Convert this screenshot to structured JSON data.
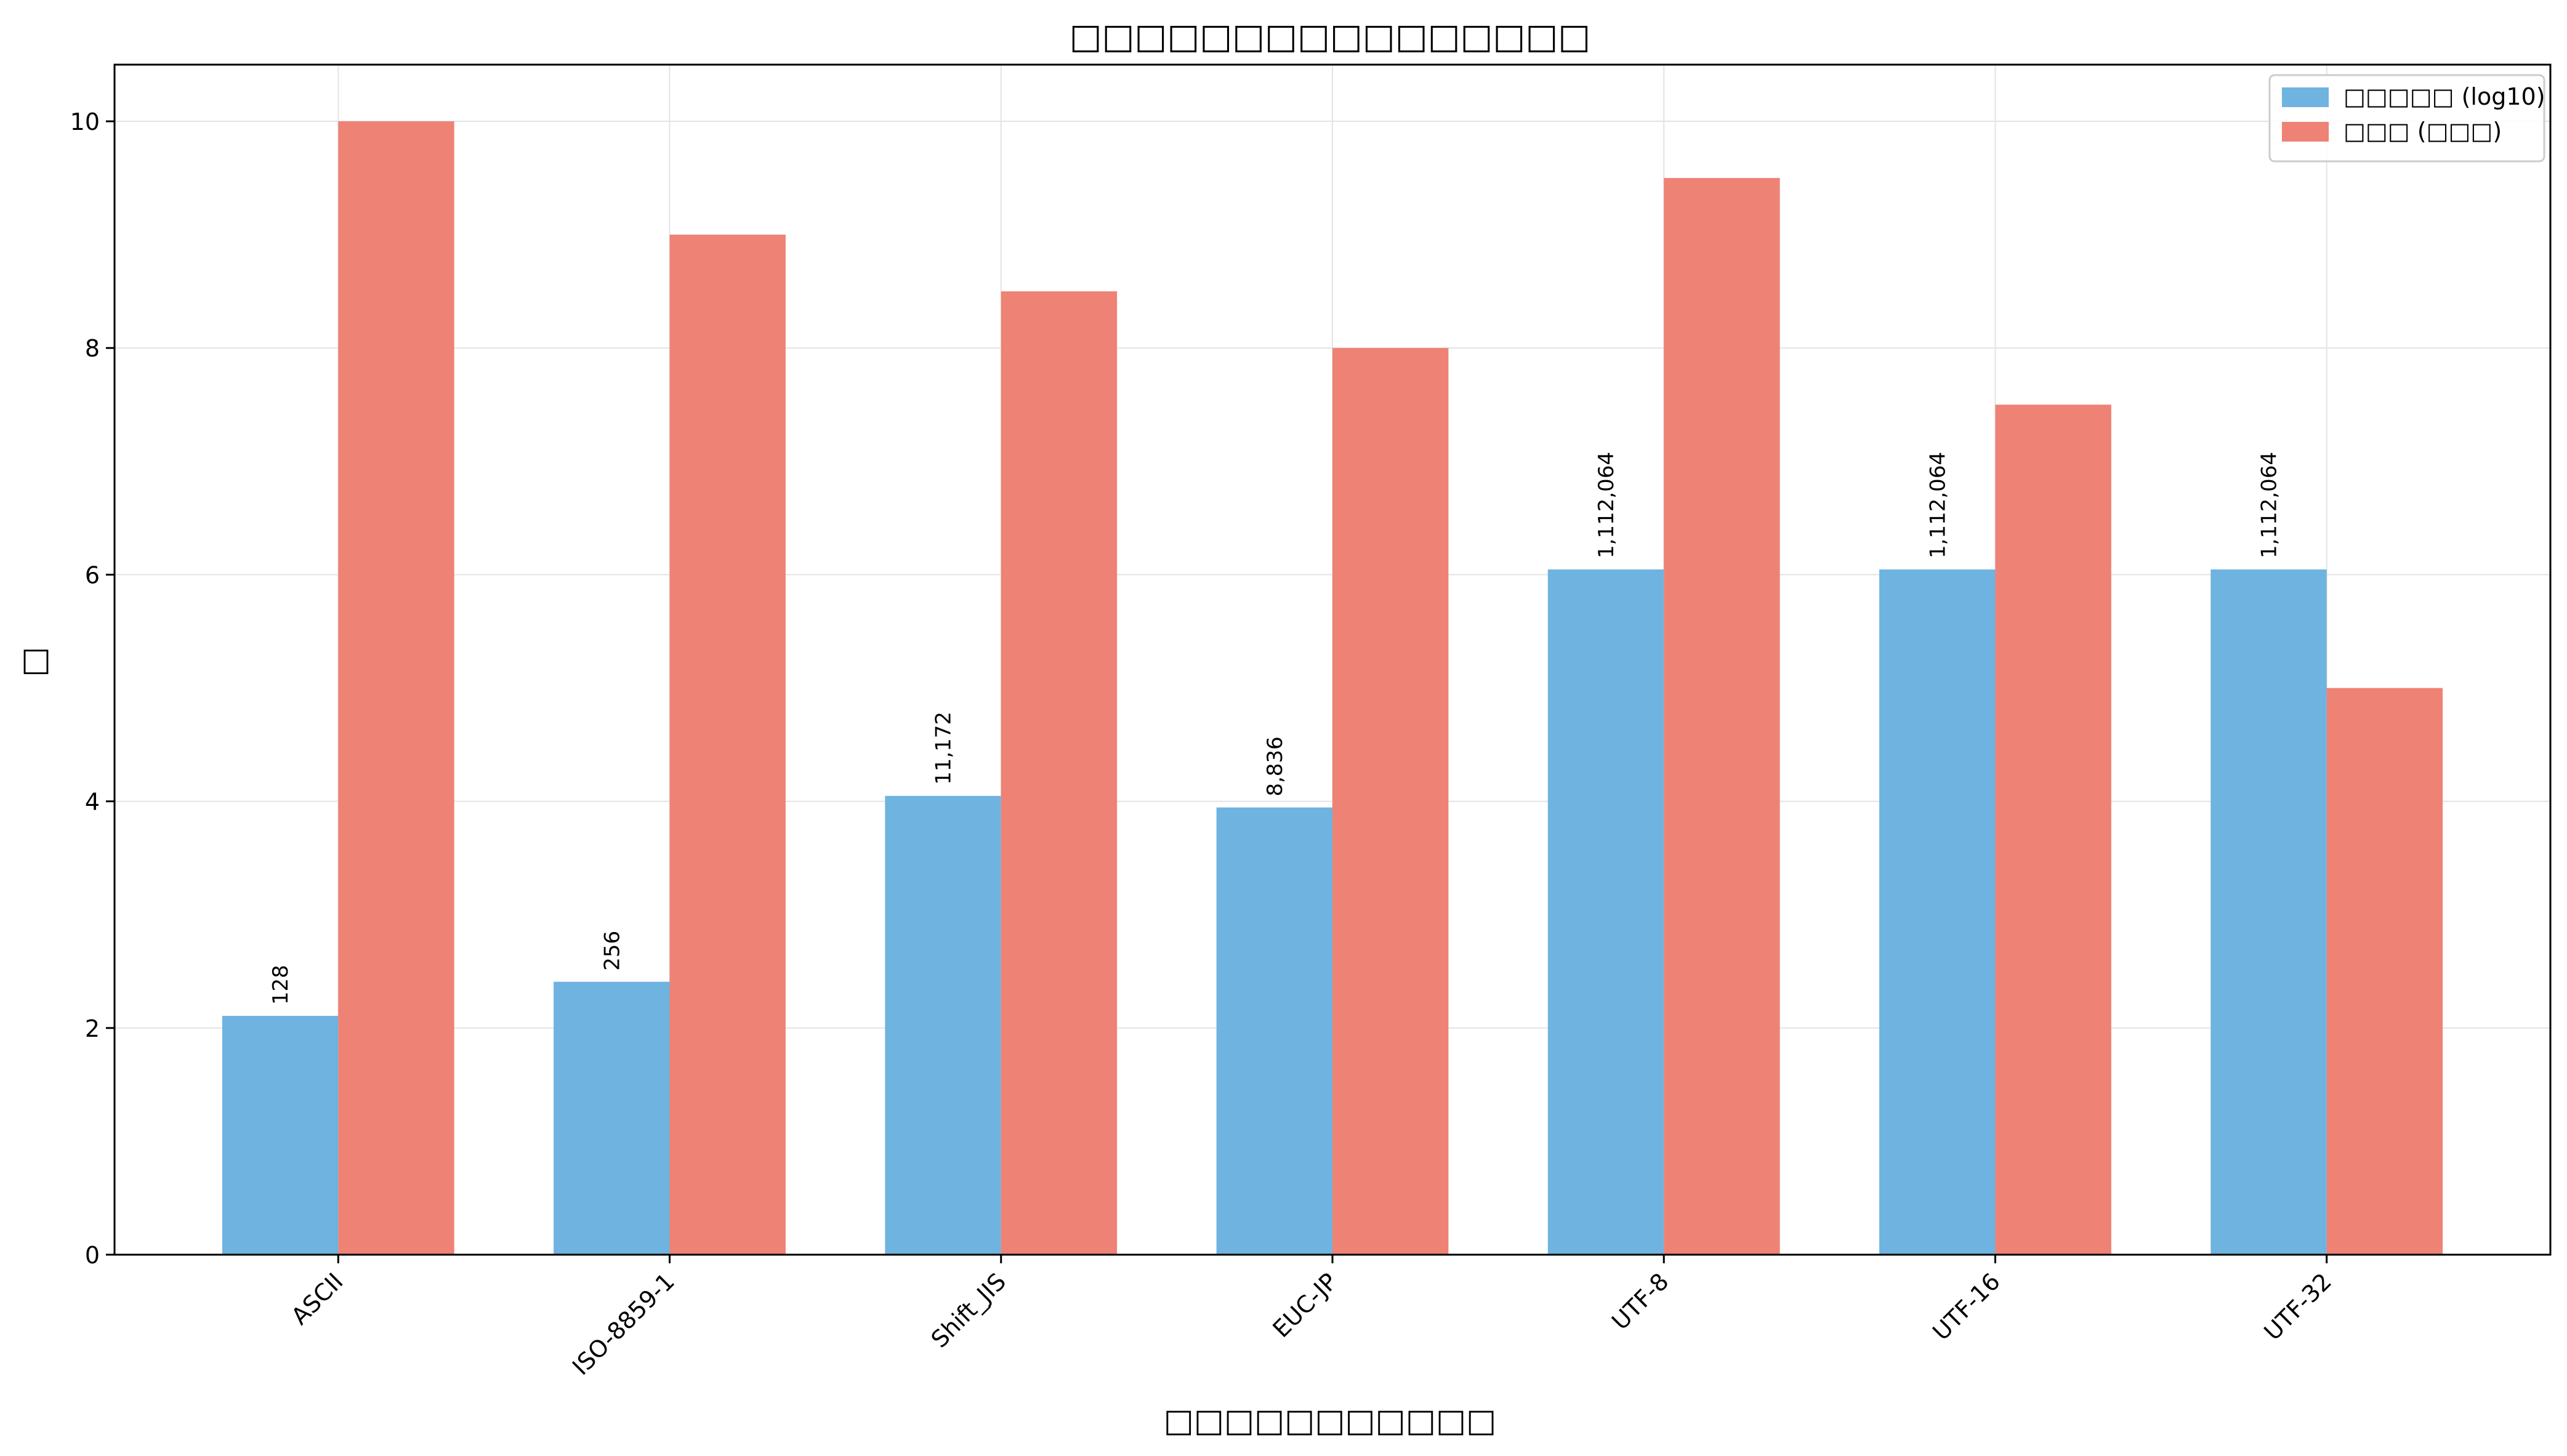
{
  "chart_data": {
    "type": "bar",
    "title": "□□□□□□□□□□□□□□□□",
    "xlabel": "□□□□□□□□□□□",
    "ylabel": "□",
    "categories": [
      "ASCII",
      "ISO-8859-1",
      "Shift_JIS",
      "EUC-JP",
      "UTF-8",
      "UTF-16",
      "UTF-32"
    ],
    "series": [
      {
        "name": "□□□□□ (log10)",
        "color": "#6fb3e0",
        "values": [
          2.107,
          2.408,
          4.048,
          3.946,
          6.046,
          6.046,
          6.046
        ],
        "data_labels": [
          "128",
          "256",
          "11,172",
          "8,836",
          "1,112,064",
          "1,112,064",
          "1,112,064"
        ]
      },
      {
        "name": "□□□ (□□□)",
        "color": "#ee8275",
        "values": [
          10,
          9,
          8.5,
          8,
          9.5,
          7.5,
          5
        ]
      }
    ],
    "ylim": [
      0,
      10.5
    ],
    "yticks": [
      0,
      2,
      4,
      6,
      8,
      10
    ],
    "grid": true,
    "legend_position": "top-right"
  }
}
